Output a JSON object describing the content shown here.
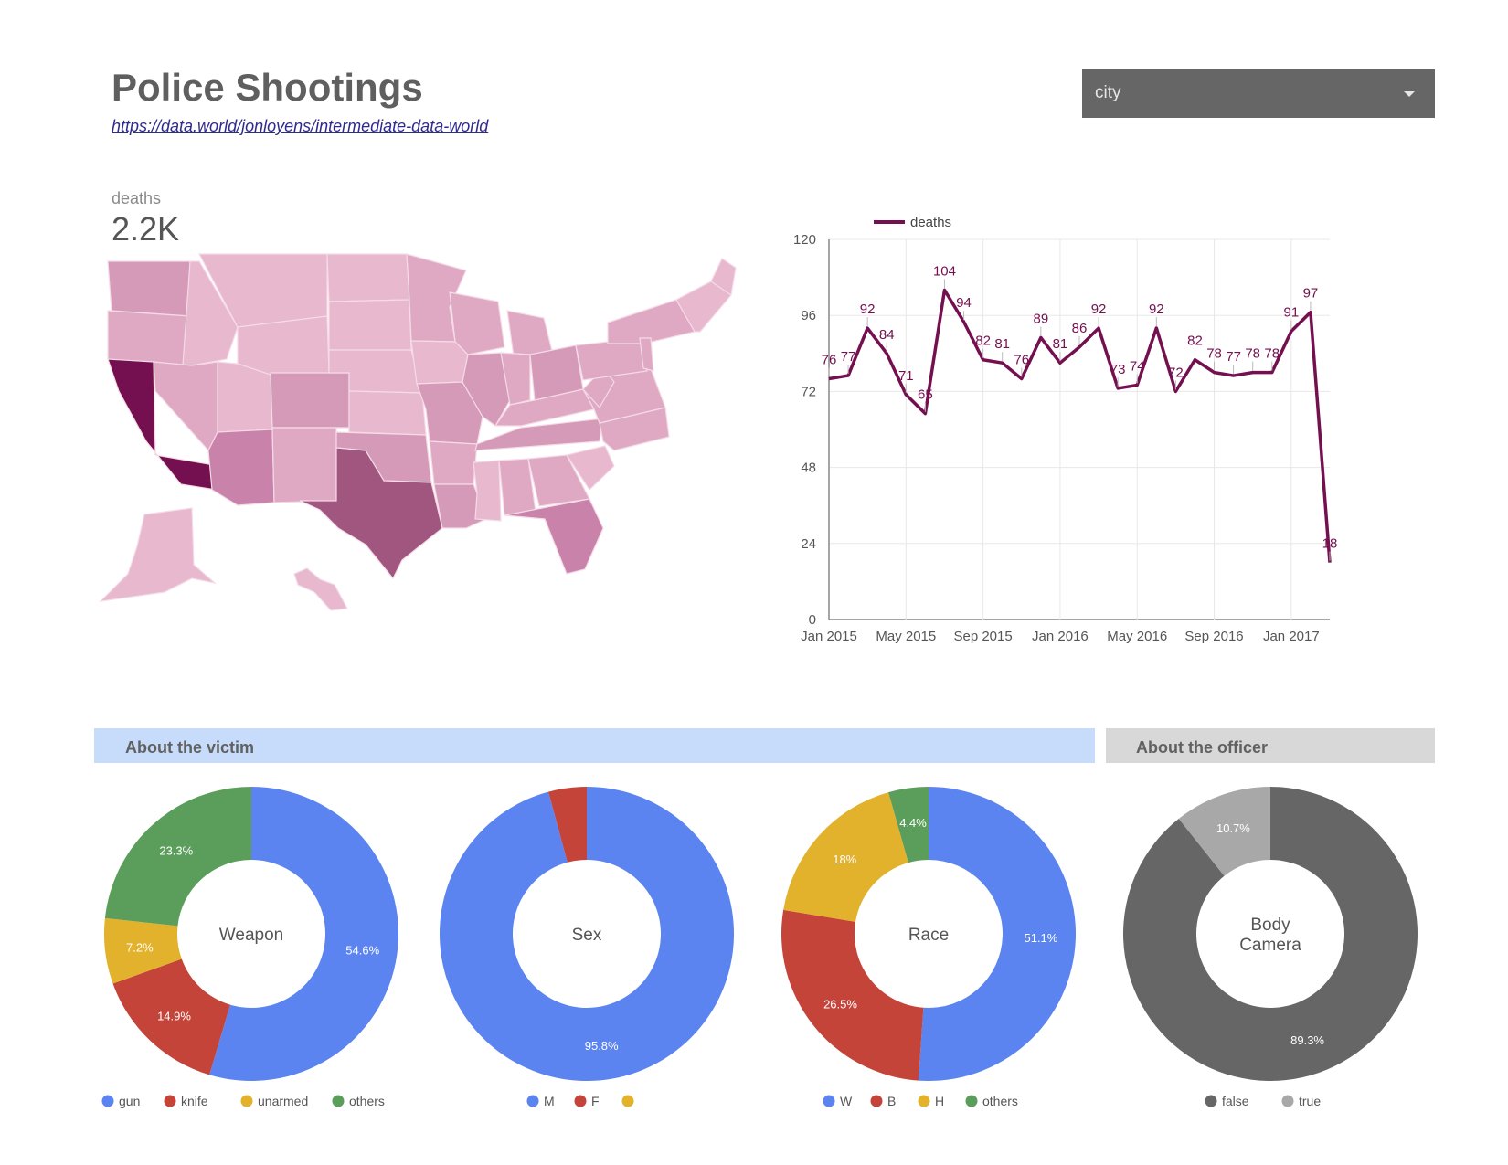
{
  "header": {
    "title": "Police Shootings",
    "link": "https://data.world/jonloyens/intermediate-data-world",
    "dropdown_value": "city"
  },
  "kpi": {
    "label": "deaths",
    "value": "2.2K"
  },
  "map": {
    "metric": "deaths",
    "region": "United States",
    "low_color": "#e8b8cf",
    "high_color": "#74104f"
  },
  "sections": {
    "victim": "About the victim",
    "officer": "About the officer"
  },
  "colors": {
    "line": "#74104f",
    "blue": "#5b84f0",
    "red": "#c5443a",
    "yellow": "#e2b22c",
    "green": "#5b9e5b",
    "dark_gray": "#666666",
    "light_gray": "#a8a8a8"
  },
  "chart_data": [
    {
      "type": "line",
      "legend": "deaths",
      "y_ticks": [
        "0",
        "24",
        "48",
        "72",
        "96",
        "120"
      ],
      "x_ticks": [
        "Jan 2015",
        "May 2015",
        "Sep 2015",
        "Jan 2016",
        "May 2016",
        "Sep 2016",
        "Jan 2017"
      ],
      "ylim": [
        0,
        120
      ],
      "values": [
        76,
        77,
        92,
        84,
        71,
        65,
        104,
        94,
        82,
        81,
        76,
        89,
        81,
        86,
        92,
        73,
        74,
        92,
        72,
        82,
        78,
        77,
        78,
        78,
        91,
        97,
        18
      ],
      "value_labels": [
        "76",
        "77",
        "92",
        "84",
        "71",
        "65",
        "104",
        "94",
        "82",
        "81",
        "76",
        "89",
        "81",
        "86",
        "92",
        "73",
        "74",
        "92",
        "72",
        "82",
        "78",
        "77",
        "78",
        "78",
        "91",
        "97",
        "18"
      ]
    },
    {
      "type": "pie",
      "center": "Weapon",
      "slices": [
        {
          "name": "gun",
          "value": 54.6,
          "label": "54.6%",
          "color": "#5b84f0"
        },
        {
          "name": "knife",
          "value": 14.9,
          "label": "14.9%",
          "color": "#c5443a"
        },
        {
          "name": "unarmed",
          "value": 7.2,
          "label": "7.2%",
          "color": "#e2b22c"
        },
        {
          "name": "others",
          "value": 23.3,
          "label": "23.3%",
          "color": "#5b9e5b"
        }
      ]
    },
    {
      "type": "pie",
      "center": "Sex",
      "slices": [
        {
          "name": "M",
          "value": 95.8,
          "label": "95.8%",
          "color": "#5b84f0"
        },
        {
          "name": "F",
          "value": 4.2,
          "label": "",
          "color": "#c5443a"
        },
        {
          "name": "",
          "value": 0,
          "label": "",
          "color": "#e2b22c"
        }
      ]
    },
    {
      "type": "pie",
      "center": "Race",
      "slices": [
        {
          "name": "W",
          "value": 51.1,
          "label": "51.1%",
          "color": "#5b84f0"
        },
        {
          "name": "B",
          "value": 26.5,
          "label": "26.5%",
          "color": "#c5443a"
        },
        {
          "name": "H",
          "value": 18,
          "label": "18%",
          "color": "#e2b22c"
        },
        {
          "name": "others",
          "value": 4.4,
          "label": "4.4%",
          "color": "#5b9e5b"
        }
      ]
    },
    {
      "type": "pie",
      "center": "Body Camera",
      "center_lines": [
        "Body",
        "Camera"
      ],
      "slices": [
        {
          "name": "false",
          "value": 89.3,
          "label": "89.3%",
          "color": "#666666"
        },
        {
          "name": "true",
          "value": 10.7,
          "label": "10.7%",
          "color": "#a8a8a8"
        }
      ]
    }
  ]
}
